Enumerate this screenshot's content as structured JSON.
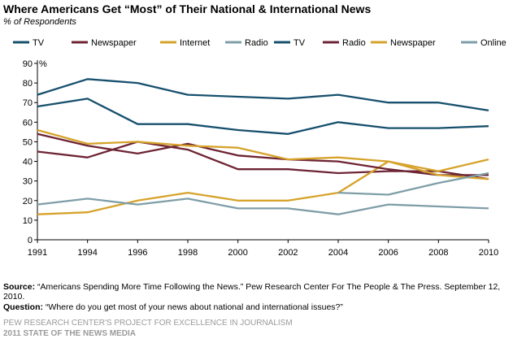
{
  "title": "Where Americans Get “Most” of Their National & International News",
  "subtitle": "% of Respondents",
  "source_label": "Source:",
  "source_text": "“Americans Spending More Time Following the News.” Pew Research Center For The People & The Press. September 12, 2010.",
  "question_label": "Question:",
  "question_text": "“Where do you get most of your news about national and international issues?”",
  "footer_line1": "PEW RESEARCH CENTER'S PROJECT FOR EXCELLENCE IN JOURNALISM",
  "footer_line2": "2011 STATE OF THE NEWS MEDIA",
  "chart_data": {
    "type": "line",
    "x": [
      "1991",
      "1994",
      "1996",
      "1998",
      "2000",
      "2002",
      "2004",
      "2006",
      "2008",
      "2010"
    ],
    "ylim": [
      0,
      90
    ],
    "yticks": [
      0,
      10,
      20,
      30,
      40,
      50,
      60,
      70,
      80,
      90
    ],
    "y_unit": "%",
    "grid": false,
    "legend_position": "top",
    "series": [
      {
        "name": "TV",
        "color": "#17506e",
        "values": [
          68,
          72,
          59,
          59,
          56,
          54,
          60,
          57,
          57,
          58
        ]
      },
      {
        "name": "Newspaper",
        "color": "#6e2434",
        "values": [
          45,
          42,
          50,
          46,
          36,
          36,
          34,
          35,
          35,
          31
        ]
      },
      {
        "name": "Internet",
        "color": "#d6a32b",
        "values": [
          13,
          14,
          20,
          24,
          20,
          20,
          24,
          40,
          35,
          41
        ]
      },
      {
        "name": "Radio",
        "color": "#7f9ea8",
        "values": [
          18,
          21,
          18,
          21,
          16,
          16,
          13,
          18,
          17,
          16
        ]
      },
      {
        "name": "TV",
        "color": "#17506e",
        "values": [
          74,
          82,
          80,
          74,
          73,
          72,
          74,
          70,
          70,
          66
        ]
      },
      {
        "name": "Radio",
        "color": "#6e2434",
        "values": [
          54,
          48,
          44,
          49,
          43,
          41,
          40,
          36,
          33,
          33
        ]
      },
      {
        "name": "Newspaper",
        "color": "#d6a32b",
        "values": [
          56,
          49,
          50,
          48,
          47,
          41,
          42,
          40,
          33,
          31
        ]
      },
      {
        "name": "Online",
        "color": "#7f9ea8",
        "values": [
          null,
          null,
          null,
          null,
          null,
          null,
          24,
          23,
          29,
          34
        ]
      }
    ]
  }
}
